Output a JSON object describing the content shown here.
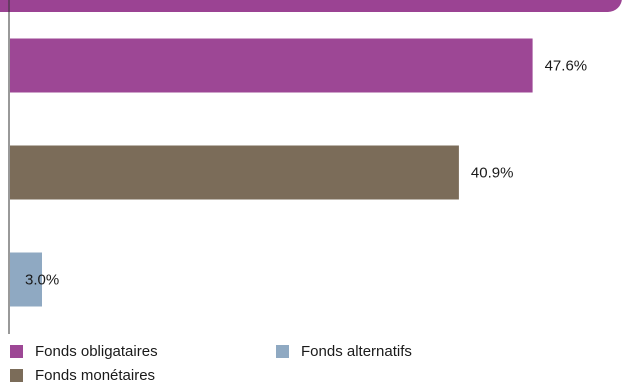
{
  "colors": {
    "header": "#9b4393",
    "axis": "#333333"
  },
  "chart_data": {
    "type": "bar",
    "orientation": "horizontal",
    "categories": [
      "Fonds obligataires",
      "Fonds monétaires",
      "Fonds alternatifs"
    ],
    "values": [
      47.6,
      40.9,
      3.0
    ],
    "value_labels": [
      "47.6%",
      "40.9%",
      "3.0%"
    ],
    "colors": [
      "#9d4795",
      "#7b6c59",
      "#8fa9c2"
    ],
    "xlim": [
      0,
      50
    ],
    "grid": false,
    "legend_position": "bottom",
    "legend": [
      {
        "label": "Fonds obligataires",
        "color": "#9d4795"
      },
      {
        "label": "Fonds alternatifs",
        "color": "#8fa9c2"
      },
      {
        "label": "Fonds monétaires",
        "color": "#7b6c59"
      }
    ]
  }
}
